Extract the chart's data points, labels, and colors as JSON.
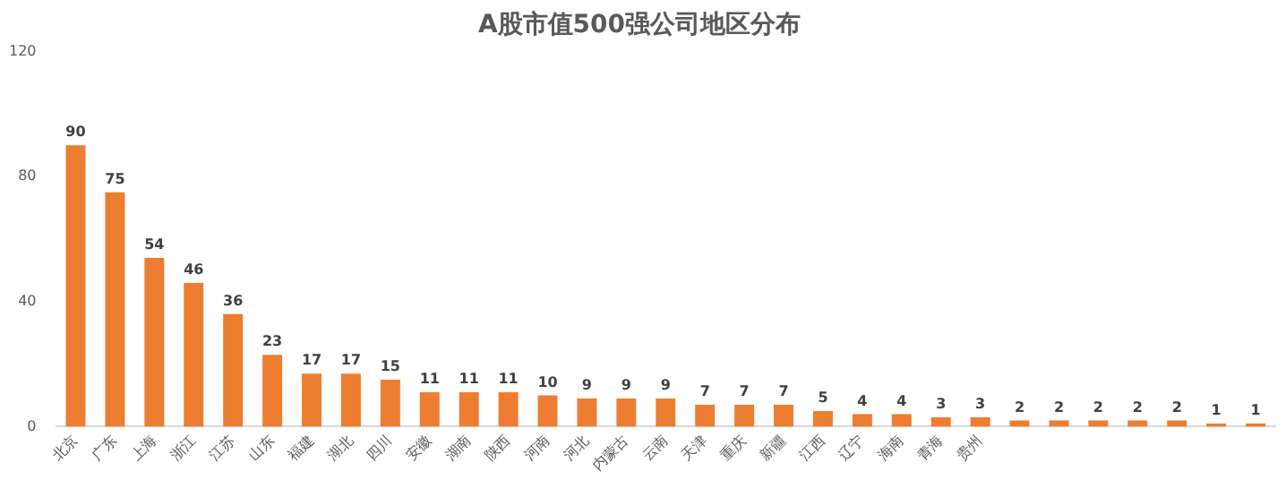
{
  "chart_data": {
    "type": "bar",
    "title": "A股市值500强公司地区分布",
    "categories": [
      "北京",
      "广东",
      "上海",
      "浙江",
      "江苏",
      "山东",
      "福建",
      "湖北",
      "四川",
      "安徽",
      "湖南",
      "陕西",
      "河南",
      "河北",
      "内蒙古",
      "云南",
      "天津",
      "重庆",
      "新疆",
      "江西",
      "辽宁",
      "海南",
      "青海",
      "贵州",
      null,
      null,
      null,
      null,
      null,
      null,
      null
    ],
    "values": [
      90,
      75,
      54,
      46,
      36,
      23,
      17,
      17,
      15,
      11,
      11,
      11,
      10,
      9,
      9,
      9,
      7,
      7,
      7,
      5,
      4,
      4,
      3,
      3,
      2,
      2,
      2,
      2,
      2,
      1,
      1
    ],
    "color": "#ed7d31",
    "ylim": [
      0,
      120
    ],
    "yticks": [
      0,
      40,
      80,
      120
    ],
    "grid": false,
    "data_labels": true
  }
}
